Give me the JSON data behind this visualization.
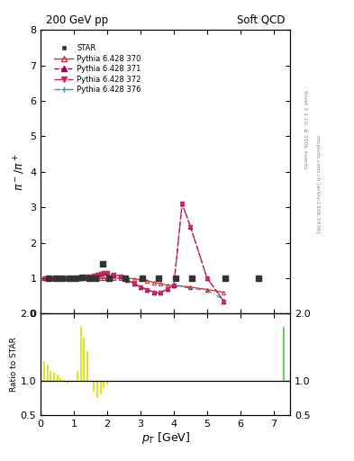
{
  "title_left": "200 GeV pp",
  "title_right": "Soft QCD",
  "ylabel_main": "$\\pi^- / \\pi^+$",
  "ylabel_ratio": "Ratio to STAR",
  "xlabel": "$p_T$ [GeV]",
  "right_label1": "Rivet 3.1.10, ≥ 100k events",
  "right_label2": "mcplots.cern.ch [arXiv:1306.3436]",
  "ylim_main": [
    0,
    8
  ],
  "ylim_ratio": [
    0.5,
    2.0
  ],
  "xlim": [
    0,
    7.5
  ],
  "yticks_main": [
    0,
    1,
    2,
    3,
    4,
    5,
    6,
    7,
    8
  ],
  "yticks_ratio": [
    0.5,
    1.0,
    2.0
  ],
  "star_x": [
    0.25,
    0.45,
    0.65,
    0.85,
    1.05,
    1.25,
    1.45,
    1.65,
    1.85,
    2.05,
    2.55,
    3.05,
    3.55,
    4.05,
    4.55,
    5.55,
    6.55
  ],
  "star_y": [
    1.0,
    1.0,
    1.0,
    1.0,
    1.0,
    1.02,
    1.0,
    1.0,
    1.4,
    1.0,
    1.0,
    1.0,
    1.0,
    1.0,
    1.0,
    1.0,
    1.0
  ],
  "py370_x": [
    0.1,
    0.2,
    0.3,
    0.4,
    0.5,
    0.6,
    0.7,
    0.8,
    0.9,
    1.0,
    1.1,
    1.2,
    1.3,
    1.4,
    1.5,
    1.6,
    1.7,
    1.8,
    1.9,
    2.0,
    2.2,
    2.4,
    2.6,
    2.8,
    3.0,
    3.2,
    3.4,
    3.6,
    3.8,
    4.0,
    4.5,
    5.0,
    5.5
  ],
  "py370_y": [
    1.0,
    1.0,
    1.0,
    1.0,
    1.0,
    1.0,
    1.0,
    1.0,
    1.0,
    1.0,
    1.0,
    1.0,
    1.0,
    1.0,
    1.0,
    1.0,
    1.0,
    1.0,
    1.0,
    1.0,
    1.0,
    1.0,
    1.0,
    0.98,
    0.96,
    0.93,
    0.88,
    0.85,
    0.8,
    0.8,
    0.75,
    0.68,
    0.6
  ],
  "py371_x": [
    0.1,
    0.2,
    0.3,
    0.4,
    0.5,
    0.6,
    0.7,
    0.8,
    0.9,
    1.0,
    1.1,
    1.2,
    1.3,
    1.4,
    1.5,
    1.6,
    1.7,
    1.8,
    1.9,
    2.0,
    2.2,
    2.4,
    2.6,
    2.8,
    3.0,
    3.2,
    3.4,
    3.6,
    3.8,
    4.0,
    4.25,
    4.5,
    5.0,
    5.5
  ],
  "py371_y": [
    1.0,
    1.0,
    1.0,
    1.0,
    1.0,
    1.0,
    1.0,
    1.0,
    1.0,
    1.0,
    1.0,
    1.01,
    1.02,
    1.04,
    1.06,
    1.08,
    1.1,
    1.12,
    1.14,
    1.15,
    1.1,
    1.05,
    0.95,
    0.85,
    0.75,
    0.68,
    0.6,
    0.58,
    0.7,
    0.8,
    3.1,
    2.45,
    1.0,
    0.35
  ],
  "py372_x": [
    0.1,
    0.2,
    0.3,
    0.4,
    0.5,
    0.6,
    0.7,
    0.8,
    0.9,
    1.0,
    1.1,
    1.2,
    1.3,
    1.4,
    1.5,
    1.6,
    1.7,
    1.8,
    1.9,
    2.0,
    2.2,
    2.4,
    2.6,
    2.8,
    3.0,
    3.2,
    3.4,
    3.6,
    3.8,
    4.0,
    4.25,
    4.5,
    5.0,
    5.5
  ],
  "py372_y": [
    1.0,
    1.0,
    1.0,
    1.0,
    1.0,
    1.0,
    1.0,
    1.0,
    1.0,
    1.0,
    1.0,
    1.01,
    1.02,
    1.04,
    1.06,
    1.08,
    1.1,
    1.12,
    1.14,
    1.15,
    1.1,
    1.05,
    0.95,
    0.85,
    0.75,
    0.68,
    0.6,
    0.58,
    0.7,
    0.8,
    3.1,
    2.45,
    1.0,
    0.35
  ],
  "py376_x": [
    0.1,
    0.2,
    0.3,
    0.4,
    0.5,
    0.6,
    0.7,
    0.8,
    0.9,
    1.0,
    1.1,
    1.2,
    1.3,
    1.4,
    1.5,
    1.6,
    1.7,
    1.8,
    1.9,
    2.0,
    2.2,
    2.4,
    2.6,
    2.8,
    3.0,
    3.2,
    3.4,
    3.6,
    3.8,
    4.0,
    4.5,
    5.0,
    5.5
  ],
  "py376_y": [
    1.0,
    1.0,
    1.0,
    1.0,
    1.0,
    1.0,
    1.0,
    1.0,
    1.0,
    1.0,
    1.0,
    1.0,
    1.01,
    1.03,
    1.05,
    1.08,
    1.1,
    1.12,
    1.13,
    1.12,
    1.08,
    1.02,
    0.95,
    0.85,
    0.75,
    0.68,
    0.6,
    0.58,
    0.7,
    0.78,
    0.72,
    0.65,
    0.4
  ],
  "color_star": "#333333",
  "color_370": "#cc3333",
  "color_371": "#990055",
  "color_372": "#cc2266",
  "color_376": "#11aaaa",
  "ratio_yellow_x": [
    0.1,
    0.2,
    0.3,
    0.4,
    0.5,
    0.6,
    0.7,
    0.8,
    0.9,
    1.0,
    1.1,
    1.2,
    1.3,
    1.4,
    1.5,
    1.6,
    1.7,
    1.8,
    1.9,
    2.0,
    2.2,
    2.4,
    2.6,
    2.8,
    3.0,
    3.2,
    3.4,
    3.6,
    3.8,
    4.0,
    4.5,
    5.0,
    5.5,
    6.5
  ],
  "ratio_yellow_y": [
    1.3,
    1.25,
    1.15,
    1.12,
    1.1,
    1.05,
    1.02,
    0.98,
    1.0,
    1.0,
    1.15,
    1.8,
    1.65,
    1.45,
    1.0,
    0.85,
    0.75,
    0.8,
    0.9,
    0.95,
    1.0,
    1.0,
    1.0,
    1.0,
    1.0,
    1.0,
    1.0,
    1.0,
    1.0,
    1.0,
    1.0,
    1.0,
    1.0,
    1.0
  ],
  "ratio_green_x": [
    1.0,
    1.5,
    2.0,
    2.5,
    3.0,
    3.5,
    4.0,
    4.5,
    5.0,
    5.5,
    6.5,
    7.3
  ],
  "ratio_green_y": [
    1.0,
    1.0,
    1.0,
    1.0,
    1.0,
    1.0,
    1.0,
    1.0,
    1.0,
    1.0,
    1.0,
    1.8
  ]
}
